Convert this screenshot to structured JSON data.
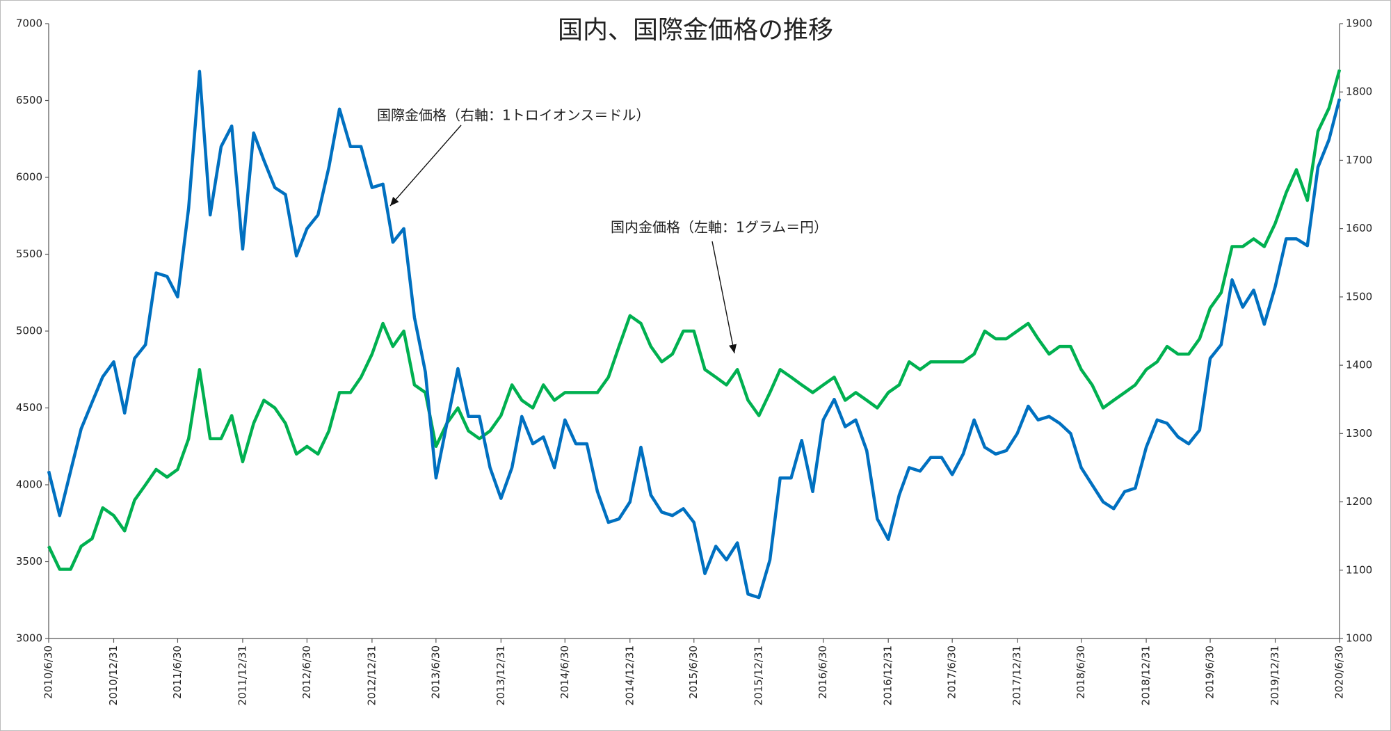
{
  "chart_data": {
    "type": "line",
    "title": "国内、国際金価格の推移",
    "annotations": [
      "国際金価格（右軸：1トロイオンス＝ドル）",
      "国内金価格（左軸：1グラム＝円）"
    ],
    "x": [
      "2010/6/30",
      "2010/7/31",
      "2010/8/31",
      "2010/9/30",
      "2010/10/31",
      "2010/11/30",
      "2010/12/31",
      "2011/1/31",
      "2011/2/28",
      "2011/3/31",
      "2011/4/30",
      "2011/5/31",
      "2011/6/30",
      "2011/7/31",
      "2011/8/31",
      "2011/9/30",
      "2011/10/31",
      "2011/11/30",
      "2011/12/31",
      "2012/1/31",
      "2012/2/29",
      "2012/3/31",
      "2012/4/30",
      "2012/5/31",
      "2012/6/30",
      "2012/7/31",
      "2012/8/31",
      "2012/9/30",
      "2012/10/31",
      "2012/11/30",
      "2012/12/31",
      "2013/1/31",
      "2013/2/28",
      "2013/3/31",
      "2013/4/30",
      "2013/5/31",
      "2013/6/30",
      "2013/7/31",
      "2013/8/31",
      "2013/9/30",
      "2013/10/31",
      "2013/11/30",
      "2013/12/31",
      "2014/1/31",
      "2014/2/28",
      "2014/3/31",
      "2014/4/30",
      "2014/5/31",
      "2014/6/30",
      "2014/7/31",
      "2014/8/31",
      "2014/9/30",
      "2014/10/31",
      "2014/11/30",
      "2014/12/31",
      "2015/1/31",
      "2015/2/28",
      "2015/3/31",
      "2015/4/30",
      "2015/5/31",
      "2015/6/30",
      "2015/7/31",
      "2015/8/31",
      "2015/9/30",
      "2015/10/31",
      "2015/11/30",
      "2015/12/31",
      "2016/1/31",
      "2016/2/29",
      "2016/3/31",
      "2016/4/30",
      "2016/5/31",
      "2016/6/30",
      "2016/7/31",
      "2016/8/31",
      "2016/9/30",
      "2016/10/31",
      "2016/11/30",
      "2016/12/31",
      "2017/1/31",
      "2017/2/28",
      "2017/3/31",
      "2017/4/30",
      "2017/5/31",
      "2017/6/30",
      "2017/7/31",
      "2017/8/31",
      "2017/9/30",
      "2017/10/31",
      "2017/11/30",
      "2017/12/31",
      "2018/1/31",
      "2018/2/28",
      "2018/3/31",
      "2018/4/30",
      "2018/5/31",
      "2018/6/30",
      "2018/7/31",
      "2018/8/31",
      "2018/9/30",
      "2018/10/31",
      "2018/11/30",
      "2018/12/31",
      "2019/1/31",
      "2019/2/28",
      "2019/3/31",
      "2019/4/30",
      "2019/5/31",
      "2019/6/30",
      "2019/7/31",
      "2019/8/31",
      "2019/9/30",
      "2019/10/31",
      "2019/11/30",
      "2019/12/31",
      "2020/1/31",
      "2020/2/29",
      "2020/3/31",
      "2020/4/30",
      "2020/5/31",
      "2020/6/30"
    ],
    "series": [
      {
        "color": "#00b050",
        "values": [
          3600,
          3450,
          3450,
          3600,
          3650,
          3850,
          3800,
          3700,
          3900,
          4000,
          4100,
          4050,
          4100,
          4300,
          4750,
          4300,
          4300,
          4450,
          4150,
          4400,
          4550,
          4500,
          4400,
          4200,
          4250,
          4200,
          4350,
          4600,
          4600,
          4700,
          4850,
          5050,
          4900,
          5000,
          4650,
          4600,
          4250,
          4400,
          4500,
          4350,
          4300,
          4350,
          4450,
          4650,
          4550,
          4500,
          4650,
          4550,
          4600,
          4600,
          4600,
          4600,
          4700,
          4900,
          5100,
          5050,
          4900,
          4800,
          4850,
          5000,
          5000,
          4750,
          4700,
          4650,
          4750,
          4550,
          4450,
          4600,
          4750,
          4700,
          4650,
          4600,
          4650,
          4700,
          4550,
          4600,
          4550,
          4500,
          4600,
          4650,
          4800,
          4750,
          4800,
          4800,
          4800,
          4800,
          4850,
          5000,
          4950,
          4950,
          5000,
          5050,
          4950,
          4850,
          4900,
          4900,
          4750,
          4650,
          4500,
          4550,
          4600,
          4650,
          4750,
          4800,
          4900,
          4850,
          4850,
          4950,
          5150,
          5250,
          5550,
          5550,
          5600,
          5550,
          5700,
          5900,
          6050,
          5850,
          6300,
          6450,
          6700
        ]
      },
      {
        "color": "#0070c0",
        "axis": "y2",
        "values": [
          1245,
          1180,
          1245,
          1307,
          1346,
          1383,
          1405,
          1330,
          1410,
          1430,
          1535,
          1530,
          1500,
          1630,
          1830,
          1620,
          1720,
          1750,
          1570,
          1740,
          1700,
          1660,
          1650,
          1560,
          1600,
          1620,
          1690,
          1775,
          1720,
          1720,
          1660,
          1665,
          1580,
          1600,
          1470,
          1390,
          1235,
          1315,
          1395,
          1325,
          1325,
          1250,
          1205,
          1250,
          1325,
          1285,
          1295,
          1250,
          1320,
          1285,
          1285,
          1215,
          1170,
          1175,
          1200,
          1280,
          1210,
          1185,
          1180,
          1190,
          1170,
          1095,
          1135,
          1115,
          1140,
          1065,
          1060,
          1115,
          1235,
          1235,
          1290,
          1215,
          1320,
          1350,
          1310,
          1320,
          1275,
          1175,
          1145,
          1210,
          1250,
          1245,
          1265,
          1265,
          1240,
          1270,
          1320,
          1280,
          1270,
          1275,
          1300,
          1340,
          1320,
          1325,
          1315,
          1300,
          1250,
          1225,
          1200,
          1190,
          1215,
          1220,
          1280,
          1320,
          1315,
          1295,
          1285,
          1305,
          1410,
          1430,
          1525,
          1485,
          1510,
          1460,
          1515,
          1585,
          1585,
          1575,
          1690,
          1730,
          1790
        ]
      }
    ],
    "xlim": [
      "2010/6/30",
      "2020/6/30"
    ],
    "xticks": [
      "2010/6/30",
      "2010/12/31",
      "2011/6/30",
      "2011/12/31",
      "2012/6/30",
      "2012/12/31",
      "2013/6/30",
      "2013/12/31",
      "2014/6/30",
      "2014/12/31",
      "2015/6/30",
      "2015/12/31",
      "2016/6/30",
      "2016/12/31",
      "2017/6/30",
      "2017/12/31",
      "2018/6/30",
      "2018/12/31",
      "2019/6/30",
      "2019/12/31",
      "2020/6/30"
    ],
    "ylim": [
      3000,
      7000
    ],
    "yticks": [
      3000,
      3500,
      4000,
      4500,
      5000,
      5500,
      6000,
      6500,
      7000
    ],
    "y2lim": [
      1000,
      1900
    ],
    "y2ticks": [
      1000,
      1100,
      1200,
      1300,
      1400,
      1500,
      1600,
      1700,
      1800,
      1900
    ]
  }
}
